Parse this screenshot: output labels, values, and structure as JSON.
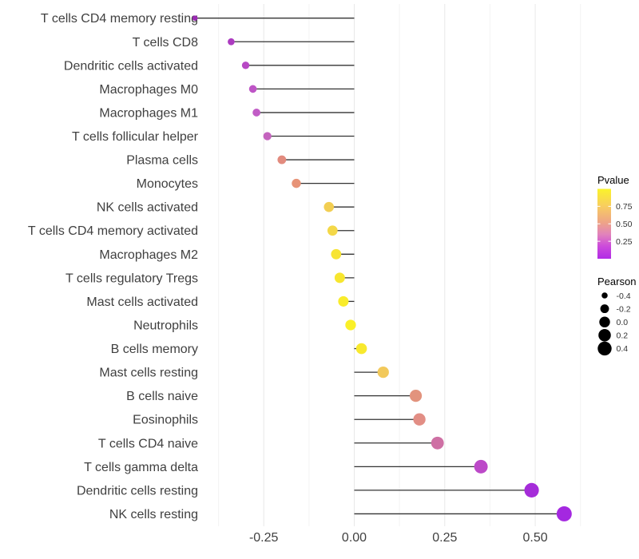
{
  "chart_data": {
    "type": "bar",
    "variant": "horizontal-lollipop",
    "title": "",
    "xlabel": "",
    "ylabel": "",
    "xlim": [
      -0.49,
      0.645
    ],
    "baseline": 0,
    "grid": "vertical-only",
    "legend_position": "right",
    "x_ticks": [
      {
        "label": "-0.25",
        "value": -0.25
      },
      {
        "label": "0.00",
        "value": 0.0
      },
      {
        "label": "0.25",
        "value": 0.25
      },
      {
        "label": "0.50",
        "value": 0.5
      }
    ],
    "x_minor_gridlines": [
      -0.375,
      -0.125,
      0.125,
      0.375,
      0.625
    ],
    "points": [
      {
        "label": "T cells CD4 memory resting",
        "pearson": -0.44,
        "color": "#9A2BB2"
      },
      {
        "label": "T cells CD8",
        "pearson": -0.34,
        "color": "#AC3BC0"
      },
      {
        "label": "Dendritic cells activated",
        "pearson": -0.3,
        "color": "#B748C4"
      },
      {
        "label": "Macrophages M0",
        "pearson": -0.28,
        "color": "#BE55C6"
      },
      {
        "label": "Macrophages M1",
        "pearson": -0.27,
        "color": "#C15CC6"
      },
      {
        "label": "T cells follicular helper",
        "pearson": -0.24,
        "color": "#C464BE"
      },
      {
        "label": "Plasma cells",
        "pearson": -0.2,
        "color": "#E28B7E"
      },
      {
        "label": "Monocytes",
        "pearson": -0.16,
        "color": "#E79377"
      },
      {
        "label": "NK cells activated",
        "pearson": -0.07,
        "color": "#F2CE52"
      },
      {
        "label": "T cells CD4 memory activated",
        "pearson": -0.06,
        "color": "#F4D848"
      },
      {
        "label": "Macrophages M2",
        "pearson": -0.05,
        "color": "#F7E434"
      },
      {
        "label": "T cells regulatory  Tregs",
        "pearson": -0.04,
        "color": "#F7E62F"
      },
      {
        "label": "Mast cells activated",
        "pearson": -0.03,
        "color": "#F9EC2B"
      },
      {
        "label": "Neutrophils",
        "pearson": -0.01,
        "color": "#FAF028"
      },
      {
        "label": "B cells memory",
        "pearson": 0.02,
        "color": "#F8E92E"
      },
      {
        "label": "Mast cells resting",
        "pearson": 0.08,
        "color": "#F2C95B"
      },
      {
        "label": "B cells naive",
        "pearson": 0.17,
        "color": "#E2937D"
      },
      {
        "label": "Eosinophils",
        "pearson": 0.18,
        "color": "#E28E85"
      },
      {
        "label": "T cells CD4 naive",
        "pearson": 0.23,
        "color": "#CE70A4"
      },
      {
        "label": "T cells gamma delta",
        "pearson": 0.35,
        "color": "#BC49C8"
      },
      {
        "label": "Dendritic cells resting",
        "pearson": 0.49,
        "color": "#A52CD9"
      },
      {
        "label": "NK cells resting",
        "pearson": 0.58,
        "color": "#A428E0"
      }
    ],
    "legends": {
      "pvalue": {
        "title": "Pvalue",
        "tick_labels": [
          "0.75",
          "0.50",
          "0.25"
        ],
        "tick_values": [
          0.75,
          0.5,
          0.25
        ],
        "range": [
          0,
          1
        ],
        "gradient_stops": [
          [
            "0%",
            "#FAF32B"
          ],
          [
            "24%",
            "#F8CE5E"
          ],
          [
            "48%",
            "#EEA487"
          ],
          [
            "65%",
            "#E183BB"
          ],
          [
            "82%",
            "#CC4BDB"
          ],
          [
            "100%",
            "#B12BE6"
          ]
        ]
      },
      "pearson": {
        "title": "Pearson",
        "entries": [
          {
            "label": "-0.4",
            "value": -0.4
          },
          {
            "label": "-0.2",
            "value": -0.2
          },
          {
            "label": "0.0",
            "value": 0.0
          },
          {
            "label": "0.2",
            "value": 0.2
          },
          {
            "label": "0.4",
            "value": 0.4
          }
        ]
      }
    },
    "colors": {
      "stick": "#333333",
      "gridline_major": "#E8E8E8",
      "gridline_minor": "#F3F3F3",
      "axis_text": "#404040",
      "legend_title": "#000000",
      "legend_text": "#333333",
      "size_key_dot": "#000000",
      "background": "#FFFFFF"
    }
  }
}
